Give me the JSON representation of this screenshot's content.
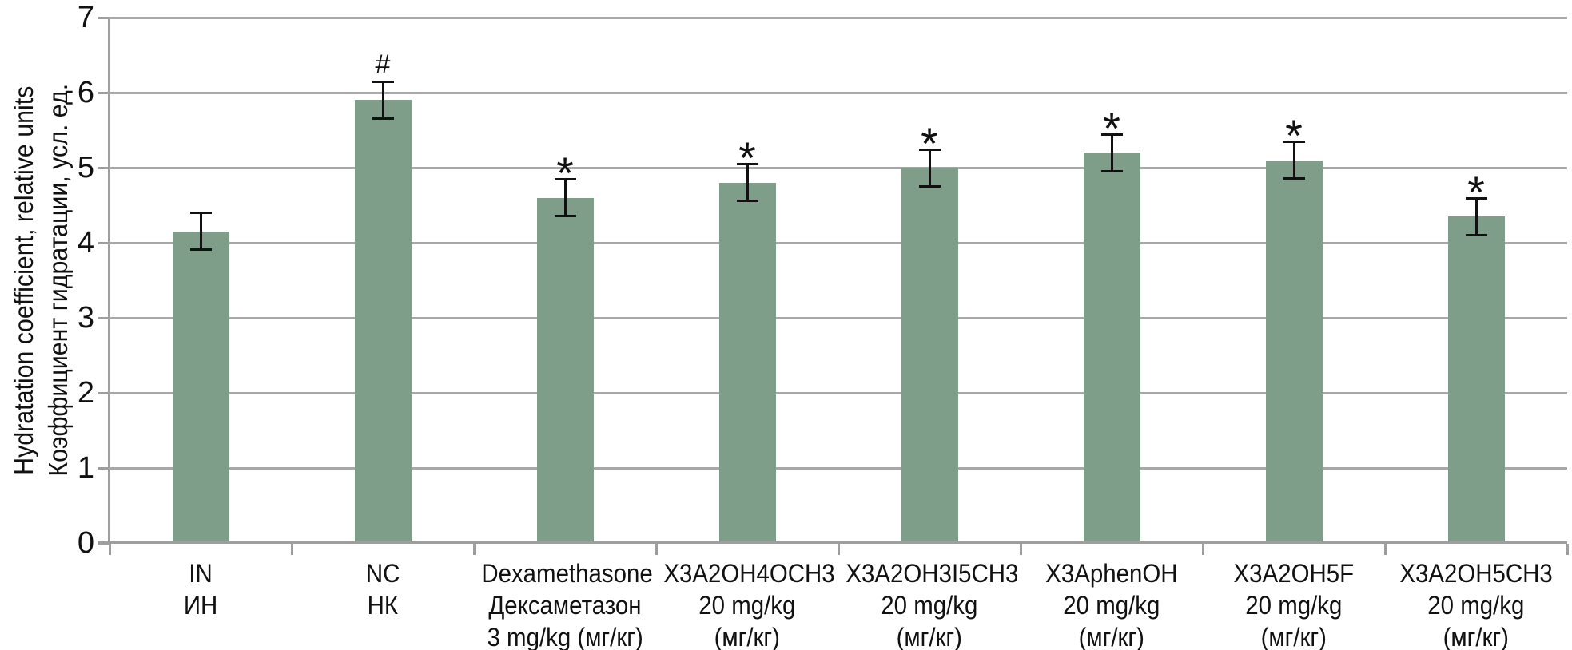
{
  "chart_data": {
    "type": "bar",
    "title": "",
    "ylabel_lines": [
      "Hydratation coefficient, relative units",
      "Коэффициент гидратации, усл. ед."
    ],
    "ylim": [
      0,
      7
    ],
    "yticks": [
      0,
      1,
      2,
      3,
      4,
      5,
      6,
      7
    ],
    "grid": "horizontal-gridlines-on",
    "legend_position": "none",
    "categories": [
      [
        "IN",
        "ИН"
      ],
      [
        "NC",
        "НК"
      ],
      [
        "Dexamethasone",
        "Дексаметазон",
        "3 mg/kg (мг/кг)"
      ],
      [
        "X3A2OH4OCH3",
        "20 mg/kg",
        "(мг/кг)"
      ],
      [
        "X3A2OH3I5CH3",
        "20 mg/kg",
        "(мг/кг)"
      ],
      [
        "X3AphenOH",
        "20 mg/kg",
        "(мг/кг)"
      ],
      [
        "X3A2OH5F",
        "20 mg/kg",
        "(мг/кг)"
      ],
      [
        "X3A2OH5CH3",
        "20 mg/kg",
        "(мг/кг)"
      ]
    ],
    "values": [
      4.15,
      5.9,
      4.6,
      4.8,
      5.0,
      5.2,
      5.1,
      4.35
    ],
    "error_bars": [
      0.25,
      0.25,
      0.25,
      0.25,
      0.25,
      0.25,
      0.25,
      0.25
    ],
    "annotations": [
      "",
      "#",
      "*",
      "*",
      "*",
      "*",
      "*",
      "*"
    ],
    "colors": {
      "bar": "#7f9e8a",
      "gridline": "#a8a8a8",
      "axis": "#9e9e9e",
      "error_bar": "#111111",
      "text": "#111111"
    }
  }
}
